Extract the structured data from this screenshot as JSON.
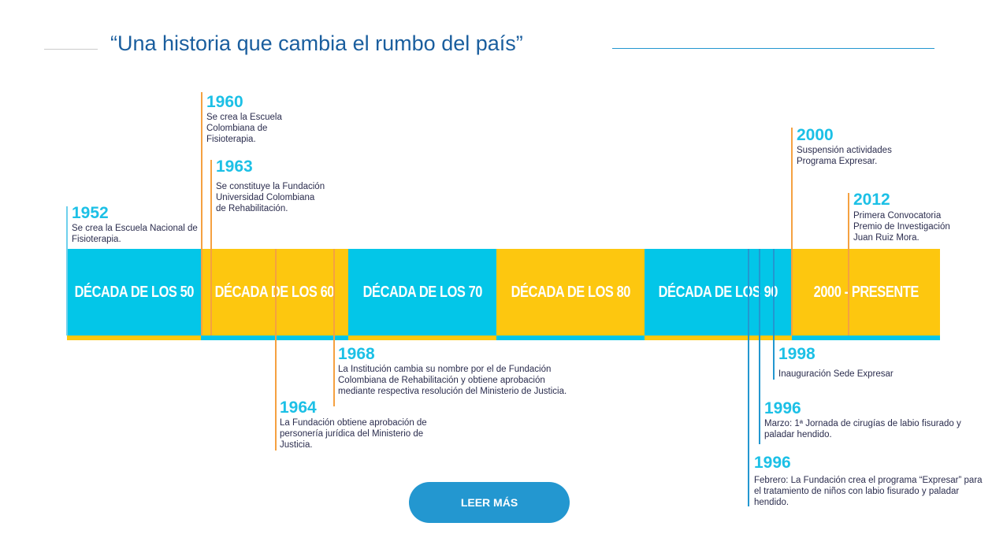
{
  "title": "“Una historia que cambia el rumbo del país”",
  "colors": {
    "cyan": "#03c6e8",
    "yellow": "#fdc70f",
    "orange": "#f5a141",
    "blue_line": "#2397d0",
    "title": "#1a5e9e"
  },
  "decades": [
    "DÉCADA DE LOS 50",
    "DÉCADA DE LOS 60",
    "DÉCADA DE LOS 70",
    "DÉCADA DE LOS 80",
    "DÉCADA DE LOS 90",
    "2000 - PRESENTE"
  ],
  "events": [
    {
      "year": "1952",
      "text": "Se crea la Escuela Nacional de Fisioterapia."
    },
    {
      "year": "1960",
      "text": "Se crea la Escuela Colombiana de Fisioterapia."
    },
    {
      "year": "1963",
      "text": "Se constituye la Fundación Universidad Colombiana de Rehabilitación."
    },
    {
      "year": "1964",
      "text": "La Fundación obtiene aprobación de personería jurídica del Ministerio de Justicia."
    },
    {
      "year": "1968",
      "text": "La Institución cambia su nombre por el de Fundación Colombiana de Rehabilitación y obtiene aprobación mediante respectiva resolución del Ministerio de Justicia."
    },
    {
      "year": "2000",
      "text": "Suspensión actividades Programa Expresar."
    },
    {
      "year": "2012",
      "text": "Primera Convocatoria Premio de Investigación Juan Ruiz Mora."
    },
    {
      "year": "1998",
      "text": "Inauguración Sede Expresar"
    },
    {
      "year": "1996",
      "text": "Marzo: 1ª Jornada de cirugías de labio fisurado y paladar hendido."
    },
    {
      "year": "1996",
      "text": "Febrero: La Fundación crea el programa “Expresar” para el tratamiento de niños con labio fisurado y paladar hendido."
    }
  ],
  "button": "LEER MÁS"
}
